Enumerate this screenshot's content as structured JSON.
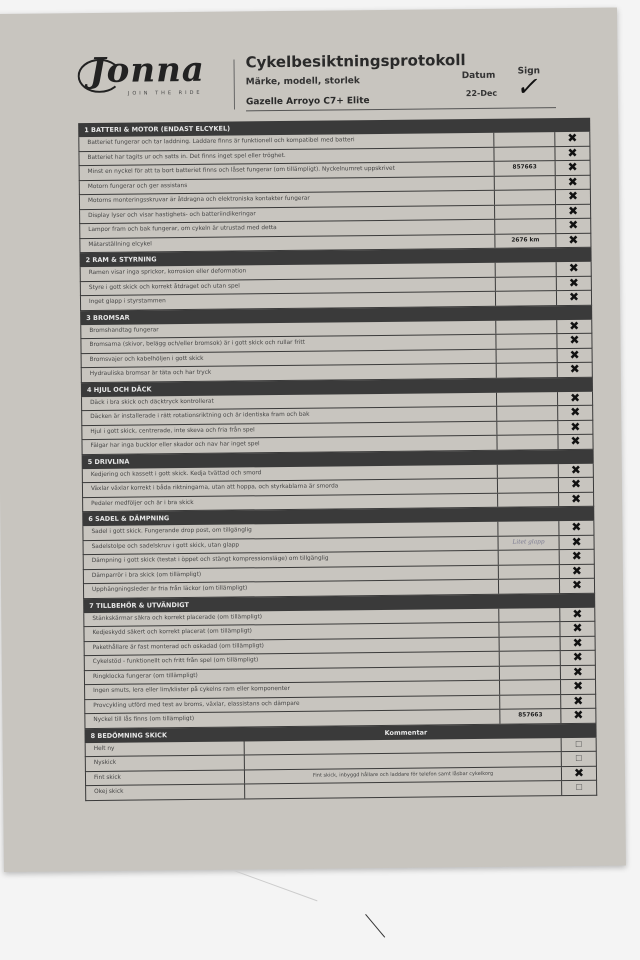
{
  "header": {
    "logo_text": "Jonna",
    "logo_tagline": "JOIN THE RIDE",
    "title": "Cykelbesiktningsprotokoll",
    "subtitle": "Märke, modell, storlek",
    "model": "Gazelle Arroyo C7+ Elite",
    "date_label": "Datum",
    "date": "22-Dec",
    "sign_label": "Sign"
  },
  "sections": [
    {
      "title": "1 BATTERI & MOTOR (ENDAST ELCYKEL)",
      "items": [
        {
          "text": "Batteriet fungerar och tar laddning.  Laddare finns är funktionell och kompatibel med batteri",
          "value": "",
          "checked": true
        },
        {
          "text": "Batteriet har tagits ur och satts in. Det finns inget spel eller tröghet.",
          "value": "",
          "checked": true
        },
        {
          "text": "Minst en nyckel för att ta bort batteriet finns och låset fungerar (om tillämpligt). Nyckelnumret uppskrivet",
          "value": "857663",
          "checked": true
        },
        {
          "text": "Motorn fungerar och ger assistans",
          "value": "",
          "checked": true
        },
        {
          "text": "Motorns monteringsskruvar är åtdragna och elektroniska kontakter fungerar",
          "value": "",
          "checked": true
        },
        {
          "text": "Display lyser och visar hastighets- och batteriindikeringar",
          "value": "",
          "checked": true
        },
        {
          "text": "Lampor fram och bak fungerar, om cykeln är utrustad med detta",
          "value": "",
          "checked": true
        },
        {
          "text": "Mätarställning elcykel",
          "value": "2676 km",
          "checked": true
        }
      ]
    },
    {
      "title": "2 RAM & STYRNING",
      "items": [
        {
          "text": "Ramen visar inga sprickor, korrosion eller deformation",
          "value": "",
          "checked": true
        },
        {
          "text": "Styre i gott skick och korrekt åtdraget och utan spel",
          "value": "",
          "checked": true
        },
        {
          "text": "Inget glapp i styrstammen",
          "value": "",
          "checked": true
        }
      ]
    },
    {
      "title": "3 BROMSAR",
      "items": [
        {
          "text": "Bromshandtag fungerar",
          "value": "",
          "checked": true
        },
        {
          "text": "Bromsarna (skivor, belägg och/eller bromsok) är i gott skick och rullar fritt",
          "value": "",
          "checked": true
        },
        {
          "text": "Bromsvajer och kabelhöljen i gott skick",
          "value": "",
          "checked": true
        },
        {
          "text": "Hydrauliska bromsar är täta och har tryck",
          "value": "",
          "checked": true
        }
      ]
    },
    {
      "title": "4 HJUL OCH DÄCK",
      "items": [
        {
          "text": "Däck i bra skick och däcktryck kontrollerat",
          "value": "",
          "checked": true
        },
        {
          "text": "Däcken är  installerade i rätt rotationsriktning och är identiska fram och bak",
          "value": "",
          "checked": true
        },
        {
          "text": "Hjul i gott skick, centrerade, inte skeva och fria från spel",
          "value": "",
          "checked": true
        },
        {
          "text": "Fälgar har inga bucklor eller skador och nav har inget spel",
          "value": "",
          "checked": true
        }
      ]
    },
    {
      "title": "5 DRIVLINA",
      "items": [
        {
          "text": "Kedjering och kassett i gott skick. Kedja tvättad och smord",
          "value": "",
          "checked": true
        },
        {
          "text": "Växlar växlar korrekt i båda riktningarna, utan att hoppa, och styrkablarna är smorda",
          "value": "",
          "checked": true
        },
        {
          "text": "Pedaler medföljer och är i bra skick",
          "value": "",
          "checked": true
        }
      ]
    },
    {
      "title": "6 SADEL & DÄMPNING",
      "items": [
        {
          "text": "Sadel i gott skick. Fungerande drop post, om tillgänglig",
          "value": "",
          "checked": true
        },
        {
          "text": "Sadelstolpe och sadelskruv i gott skick, utan glapp",
          "value": "Litet glapp",
          "handwritten": true,
          "checked": true
        },
        {
          "text": "Dämpning i gott skick (testat i öppet och stängt kompressionsläge) om tillgänglig",
          "value": "",
          "checked": true
        },
        {
          "text": "Dämparrör i bra skick (om tillämpligt)",
          "value": "",
          "checked": true
        },
        {
          "text": "Upphängningsleder är fria från läckor (om tillämpligt)",
          "value": "",
          "checked": true
        }
      ]
    },
    {
      "title": "7 TILLBEHÖR & UTVÄNDIGT",
      "items": [
        {
          "text": "Stänkskärmar säkra och korrekt placerade (om tillämpligt)",
          "value": "",
          "checked": true
        },
        {
          "text": "Kedjeskydd säkert och korrekt placerat (om tillämpligt)",
          "value": "",
          "checked": true
        },
        {
          "text": "Pakethållare är fast monterad och oskadad (om tillämpligt)",
          "value": "",
          "checked": true
        },
        {
          "text": "Cykelstöd - funktionellt och fritt från spel (om tillämpligt)",
          "value": "",
          "checked": true
        },
        {
          "text": "Ringklocka fungerar (om tillämpligt)",
          "value": "",
          "checked": true
        },
        {
          "text": "Ingen smuts, lera eller lim/klister på cykelns ram eller komponenter",
          "value": "",
          "checked": true
        },
        {
          "text": "Provcykling utförd med test av broms, växlar, elassistans och dämpare",
          "value": "",
          "checked": true
        },
        {
          "text": "Nyckel till lås finns (om tillämpligt)",
          "value": "857663",
          "checked": true
        }
      ]
    }
  ],
  "condition": {
    "title": "8 BEDÖMNING SKICK",
    "comment_header": "Kommentar",
    "items": [
      {
        "text": "Helt ny",
        "comment": "",
        "checked": false
      },
      {
        "text": "Nyskick",
        "comment": "",
        "checked": false
      },
      {
        "text": "Fint skick",
        "comment": "Fint skick, inbyggd hållare och laddare för telefon samt låsbar cykelkorg",
        "checked": true
      },
      {
        "text": "Okej skick",
        "comment": "",
        "checked": false
      }
    ]
  },
  "marks": {
    "checked": "✖",
    "unchecked": "☐"
  }
}
